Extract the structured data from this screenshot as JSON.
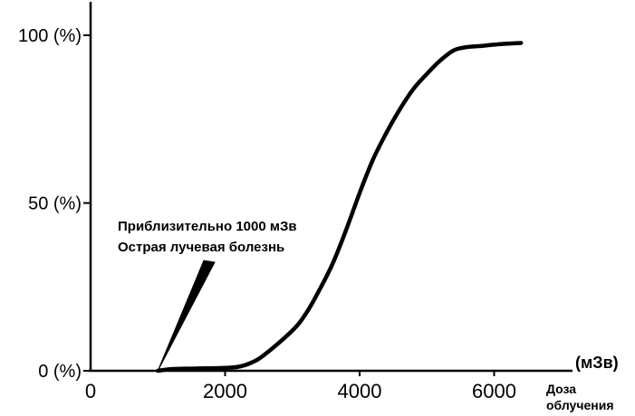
{
  "chart_data": {
    "type": "line",
    "title": "",
    "xlabel_line1": "Доза",
    "xlabel_line2": "облучения",
    "x_unit": "(мЗв)",
    "ylabel": "",
    "xlim": [
      0,
      7000
    ],
    "ylim": [
      0,
      100
    ],
    "x_ticks": [
      0,
      2000,
      4000,
      6000
    ],
    "x_tick_labels": [
      "0",
      "2000",
      "4000",
      "6000"
    ],
    "y_ticks": [
      0,
      50,
      100
    ],
    "y_tick_labels": [
      "0 (%)",
      "50 (%)",
      "100 (%)"
    ],
    "grid": false,
    "series": [
      {
        "points": [
          [
            1000,
            0
          ],
          [
            1200,
            0.5
          ],
          [
            1600,
            0.7
          ],
          [
            2000,
            0.9
          ],
          [
            2200,
            1.2
          ],
          [
            2400,
            2.5
          ],
          [
            2600,
            5
          ],
          [
            3000,
            12
          ],
          [
            3200,
            17
          ],
          [
            3400,
            24
          ],
          [
            3600,
            32
          ],
          [
            3800,
            42
          ],
          [
            4000,
            53
          ],
          [
            4200,
            63
          ],
          [
            4400,
            71
          ],
          [
            4600,
            78
          ],
          [
            4800,
            84
          ],
          [
            5000,
            88.5
          ],
          [
            5200,
            92.5
          ],
          [
            5400,
            95.5
          ],
          [
            5600,
            96.5
          ],
          [
            5800,
            96.8
          ],
          [
            6000,
            97.2
          ],
          [
            6200,
            97.5
          ],
          [
            6400,
            97.7
          ]
        ]
      }
    ],
    "annotation": {
      "line1": "Приблизительно 1000 мЗв",
      "line2": "Острая лучевая болезнь",
      "points_to": [
        1000,
        0
      ]
    }
  }
}
